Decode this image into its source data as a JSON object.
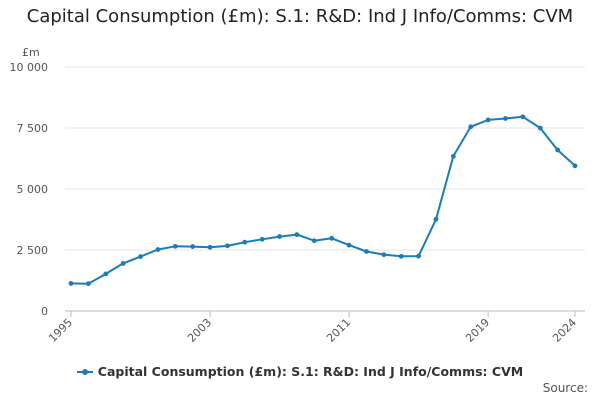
{
  "chart_data": {
    "type": "line",
    "title": "Capital Consumption (£m): S.1: R&D: Ind J Info/Comms: CVM",
    "unit_label": "£m",
    "x": [
      1995,
      1996,
      1997,
      1998,
      1999,
      2000,
      2001,
      2002,
      2003,
      2004,
      2005,
      2006,
      2007,
      2008,
      2009,
      2010,
      2011,
      2012,
      2013,
      2014,
      2015,
      2016,
      2017,
      2018,
      2019,
      2020,
      2021,
      2022,
      2023,
      2024
    ],
    "x_tick_labels": [
      "1995",
      "2003",
      "2011",
      "2019",
      "2024"
    ],
    "x_tick_values": [
      1995,
      2003,
      2011,
      2019,
      2024
    ],
    "xlim": [
      1995,
      2024
    ],
    "ylim": [
      0,
      10000
    ],
    "y_tick_labels": [
      "0",
      "2 500",
      "5 000",
      "7 500",
      "10 000"
    ],
    "y_tick_values": [
      0,
      2500,
      5000,
      7500,
      10000
    ],
    "series": [
      {
        "name": "Capital Consumption (£m): S.1: R&D: Ind J Info/Comms: CVM",
        "color": "#1b7cba",
        "values": [
          1130,
          1120,
          1520,
          1950,
          2230,
          2520,
          2650,
          2640,
          2610,
          2670,
          2820,
          2940,
          3050,
          3130,
          2880,
          2980,
          2700,
          2440,
          2310,
          2240,
          2250,
          3760,
          6340,
          7550,
          7830,
          7890,
          7960,
          7500,
          6600,
          5950
        ]
      }
    ],
    "grid": "horizontal",
    "legend_position": "bottom",
    "source_label": "Source:"
  }
}
